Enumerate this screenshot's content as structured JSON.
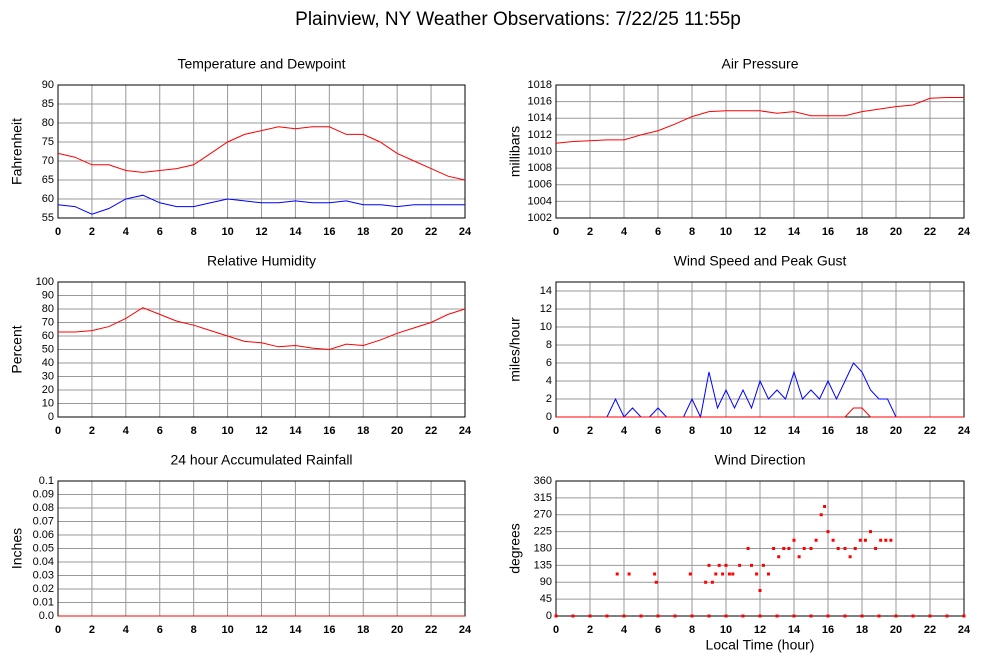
{
  "title": "Plainview, NY Weather Observations: 7/22/25 11:55p",
  "chart_data": [
    {
      "type": "line",
      "title": "Temperature and Dewpoint",
      "ylabel": "Fahrenheit",
      "x": [
        0,
        1,
        2,
        3,
        4,
        5,
        6,
        7,
        8,
        9,
        10,
        11,
        12,
        13,
        14,
        15,
        16,
        17,
        18,
        19,
        20,
        21,
        22,
        23,
        24
      ],
      "series": [
        {
          "color": "#ff0000",
          "values": [
            72,
            71,
            69,
            69,
            67.5,
            67,
            67.5,
            68,
            69,
            72,
            75,
            77,
            78,
            79,
            78.5,
            79,
            79,
            77,
            77,
            75,
            72,
            70,
            68,
            66,
            65
          ]
        },
        {
          "color": "#0000ff",
          "values": [
            58.5,
            58,
            56,
            57.5,
            60,
            61,
            59,
            58,
            58,
            59,
            60,
            59.5,
            59,
            59,
            59.5,
            59,
            59,
            59.5,
            58.5,
            58.5,
            58,
            58.5,
            58.5,
            58.5,
            58.5
          ]
        }
      ],
      "xlim": [
        0,
        24
      ],
      "ylim": [
        55,
        90
      ],
      "xticks": [
        0,
        2,
        4,
        6,
        8,
        10,
        12,
        14,
        16,
        18,
        20,
        22,
        24
      ],
      "yticks": [
        55,
        60,
        65,
        70,
        75,
        80,
        85,
        90
      ],
      "grid": true
    },
    {
      "type": "line",
      "title": "Air Pressure",
      "ylabel": "millibars",
      "x": [
        0,
        1,
        2,
        3,
        4,
        5,
        6,
        7,
        8,
        9,
        10,
        11,
        12,
        13,
        14,
        15,
        16,
        17,
        18,
        19,
        20,
        21,
        22,
        23,
        24
      ],
      "series": [
        {
          "color": "#ff0000",
          "values": [
            1011,
            1011.2,
            1011.3,
            1011.4,
            1011.4,
            1012,
            1012.5,
            1013.3,
            1014.2,
            1014.8,
            1014.9,
            1014.9,
            1014.9,
            1014.6,
            1014.8,
            1014.3,
            1014.3,
            1014.3,
            1014.8,
            1015.1,
            1015.4,
            1015.6,
            1016.4,
            1016.5,
            1016.5
          ]
        }
      ],
      "xlim": [
        0,
        24
      ],
      "ylim": [
        1002,
        1018
      ],
      "xticks": [
        0,
        2,
        4,
        6,
        8,
        10,
        12,
        14,
        16,
        18,
        20,
        22,
        24
      ],
      "yticks": [
        1002,
        1004,
        1006,
        1008,
        1010,
        1012,
        1014,
        1016,
        1018
      ],
      "grid": true
    },
    {
      "type": "line",
      "title": "Relative Humidity",
      "ylabel": "Percent",
      "x": [
        0,
        1,
        2,
        3,
        4,
        5,
        6,
        7,
        8,
        9,
        10,
        11,
        12,
        13,
        14,
        15,
        16,
        17,
        18,
        19,
        20,
        21,
        22,
        23,
        24
      ],
      "series": [
        {
          "color": "#ff0000",
          "values": [
            63,
            63,
            64,
            67,
            73,
            81,
            76,
            71,
            68,
            64,
            60,
            56,
            55,
            52,
            53,
            51,
            50,
            54,
            53,
            57,
            62,
            66,
            70,
            76,
            80
          ]
        }
      ],
      "xlim": [
        0,
        24
      ],
      "ylim": [
        0,
        100
      ],
      "xticks": [
        0,
        2,
        4,
        6,
        8,
        10,
        12,
        14,
        16,
        18,
        20,
        22,
        24
      ],
      "yticks": [
        0,
        10,
        20,
        30,
        40,
        50,
        60,
        70,
        80,
        90,
        100
      ],
      "grid": true
    },
    {
      "type": "line",
      "title": "Wind Speed and Peak Gust",
      "ylabel": "miles/hour",
      "x": [
        0,
        0.5,
        1,
        1.5,
        2,
        2.5,
        3,
        3.5,
        4,
        4.5,
        5,
        5.5,
        6,
        6.5,
        7,
        7.5,
        8,
        8.5,
        9,
        9.5,
        10,
        10.5,
        11,
        11.5,
        12,
        12.5,
        13,
        13.5,
        14,
        14.5,
        15,
        15.5,
        16,
        16.5,
        17,
        17.5,
        18,
        18.5,
        19,
        19.5,
        20,
        20.5,
        21,
        21.5,
        22,
        22.5,
        23,
        23.5,
        24
      ],
      "series": [
        {
          "color": "#0000ff",
          "values": [
            0,
            0,
            0,
            0,
            0,
            0,
            0,
            2,
            0,
            1,
            0,
            0,
            1,
            0,
            0,
            0,
            2,
            0,
            5,
            1,
            3,
            1,
            3,
            1,
            4,
            2,
            3,
            2,
            5,
            2,
            3,
            2,
            4,
            2,
            4,
            6,
            5,
            3,
            2,
            2,
            0,
            0,
            0,
            0,
            0,
            0,
            0,
            0,
            0
          ]
        },
        {
          "color": "#ff0000",
          "values": [
            0,
            0,
            0,
            0,
            0,
            0,
            0,
            0,
            0,
            0,
            0,
            0,
            0,
            0,
            0,
            0,
            0,
            0,
            0,
            0,
            0,
            0,
            0,
            0,
            0,
            0,
            0,
            0,
            0,
            0,
            0,
            0,
            0,
            0,
            0,
            1,
            1,
            0,
            0,
            0,
            0,
            0,
            0,
            0,
            0,
            0,
            0,
            0,
            0
          ]
        }
      ],
      "xlim": [
        0,
        24
      ],
      "ylim": [
        0,
        15
      ],
      "xticks": [
        0,
        2,
        4,
        6,
        8,
        10,
        12,
        14,
        16,
        18,
        20,
        22,
        24
      ],
      "yticks": [
        0,
        2,
        4,
        6,
        8,
        10,
        12,
        14
      ],
      "grid": true
    },
    {
      "type": "line",
      "title": "24 hour Accumulated Rainfall",
      "ylabel": "Inches",
      "x": [
        0,
        1,
        2,
        3,
        4,
        5,
        6,
        7,
        8,
        9,
        10,
        11,
        12,
        13,
        14,
        15,
        16,
        17,
        18,
        19,
        20,
        21,
        22,
        23,
        24
      ],
      "series": [
        {
          "color": "#ff0000",
          "values": [
            0,
            0,
            0,
            0,
            0,
            0,
            0,
            0,
            0,
            0,
            0,
            0,
            0,
            0,
            0,
            0,
            0,
            0,
            0,
            0,
            0,
            0,
            0,
            0,
            0
          ]
        }
      ],
      "xlim": [
        0,
        24
      ],
      "ylim": [
        0,
        0.1
      ],
      "xticks": [
        0,
        2,
        4,
        6,
        8,
        10,
        12,
        14,
        16,
        18,
        20,
        22,
        24
      ],
      "yticks": [
        {
          "value": 0,
          "label": "0.0"
        },
        0.01,
        0.02,
        0.03,
        0.04,
        0.05,
        0.06,
        0.07,
        0.08,
        0.09,
        0.1
      ],
      "grid": true
    },
    {
      "type": "scatter",
      "title": "Wind Direction",
      "ylabel": "degrees",
      "xlabel": "Local Time (hour)",
      "x": [
        0,
        1,
        2,
        3,
        4,
        5,
        6,
        7,
        8,
        9,
        10,
        11,
        12,
        13,
        14,
        15,
        16,
        17,
        18,
        19,
        20,
        21,
        22,
        23,
        24,
        3.6,
        4.3,
        5.8,
        5.9,
        7.9,
        8.8,
        9,
        9.2,
        9.4,
        9.6,
        9.8,
        10,
        10.2,
        10.4,
        10.8,
        11.3,
        11.5,
        11.8,
        12,
        12.2,
        12.5,
        12.8,
        13.1,
        13.4,
        13.7,
        14,
        14.3,
        14.6,
        15,
        15.3,
        15.6,
        15.8,
        16,
        16.3,
        16.6,
        17,
        17.3,
        17.6,
        17.9,
        18.2,
        18.5,
        18.8,
        19.1,
        19.4,
        19.7
      ],
      "series": [
        {
          "color": "#ff0000",
          "values": [
            0,
            0,
            0,
            0,
            0,
            0,
            0,
            0,
            0,
            0,
            0,
            0,
            0,
            0,
            0,
            0,
            0,
            0,
            0,
            0,
            0,
            0,
            0,
            0,
            0,
            112,
            112,
            112,
            90,
            112,
            90,
            135,
            90,
            112,
            135,
            112,
            135,
            112,
            112,
            135,
            180,
            135,
            112,
            68,
            135,
            112,
            180,
            158,
            180,
            180,
            202,
            158,
            180,
            180,
            202,
            270,
            292,
            225,
            202,
            180,
            180,
            158,
            180,
            202,
            202,
            225,
            180,
            202,
            202,
            202
          ]
        }
      ],
      "xlim": [
        0,
        24
      ],
      "ylim": [
        0,
        360
      ],
      "xticks": [
        0,
        2,
        4,
        6,
        8,
        10,
        12,
        14,
        16,
        18,
        20,
        22,
        24
      ],
      "yticks": [
        0,
        45,
        90,
        135,
        180,
        225,
        270,
        315,
        360
      ],
      "grid": true
    }
  ]
}
